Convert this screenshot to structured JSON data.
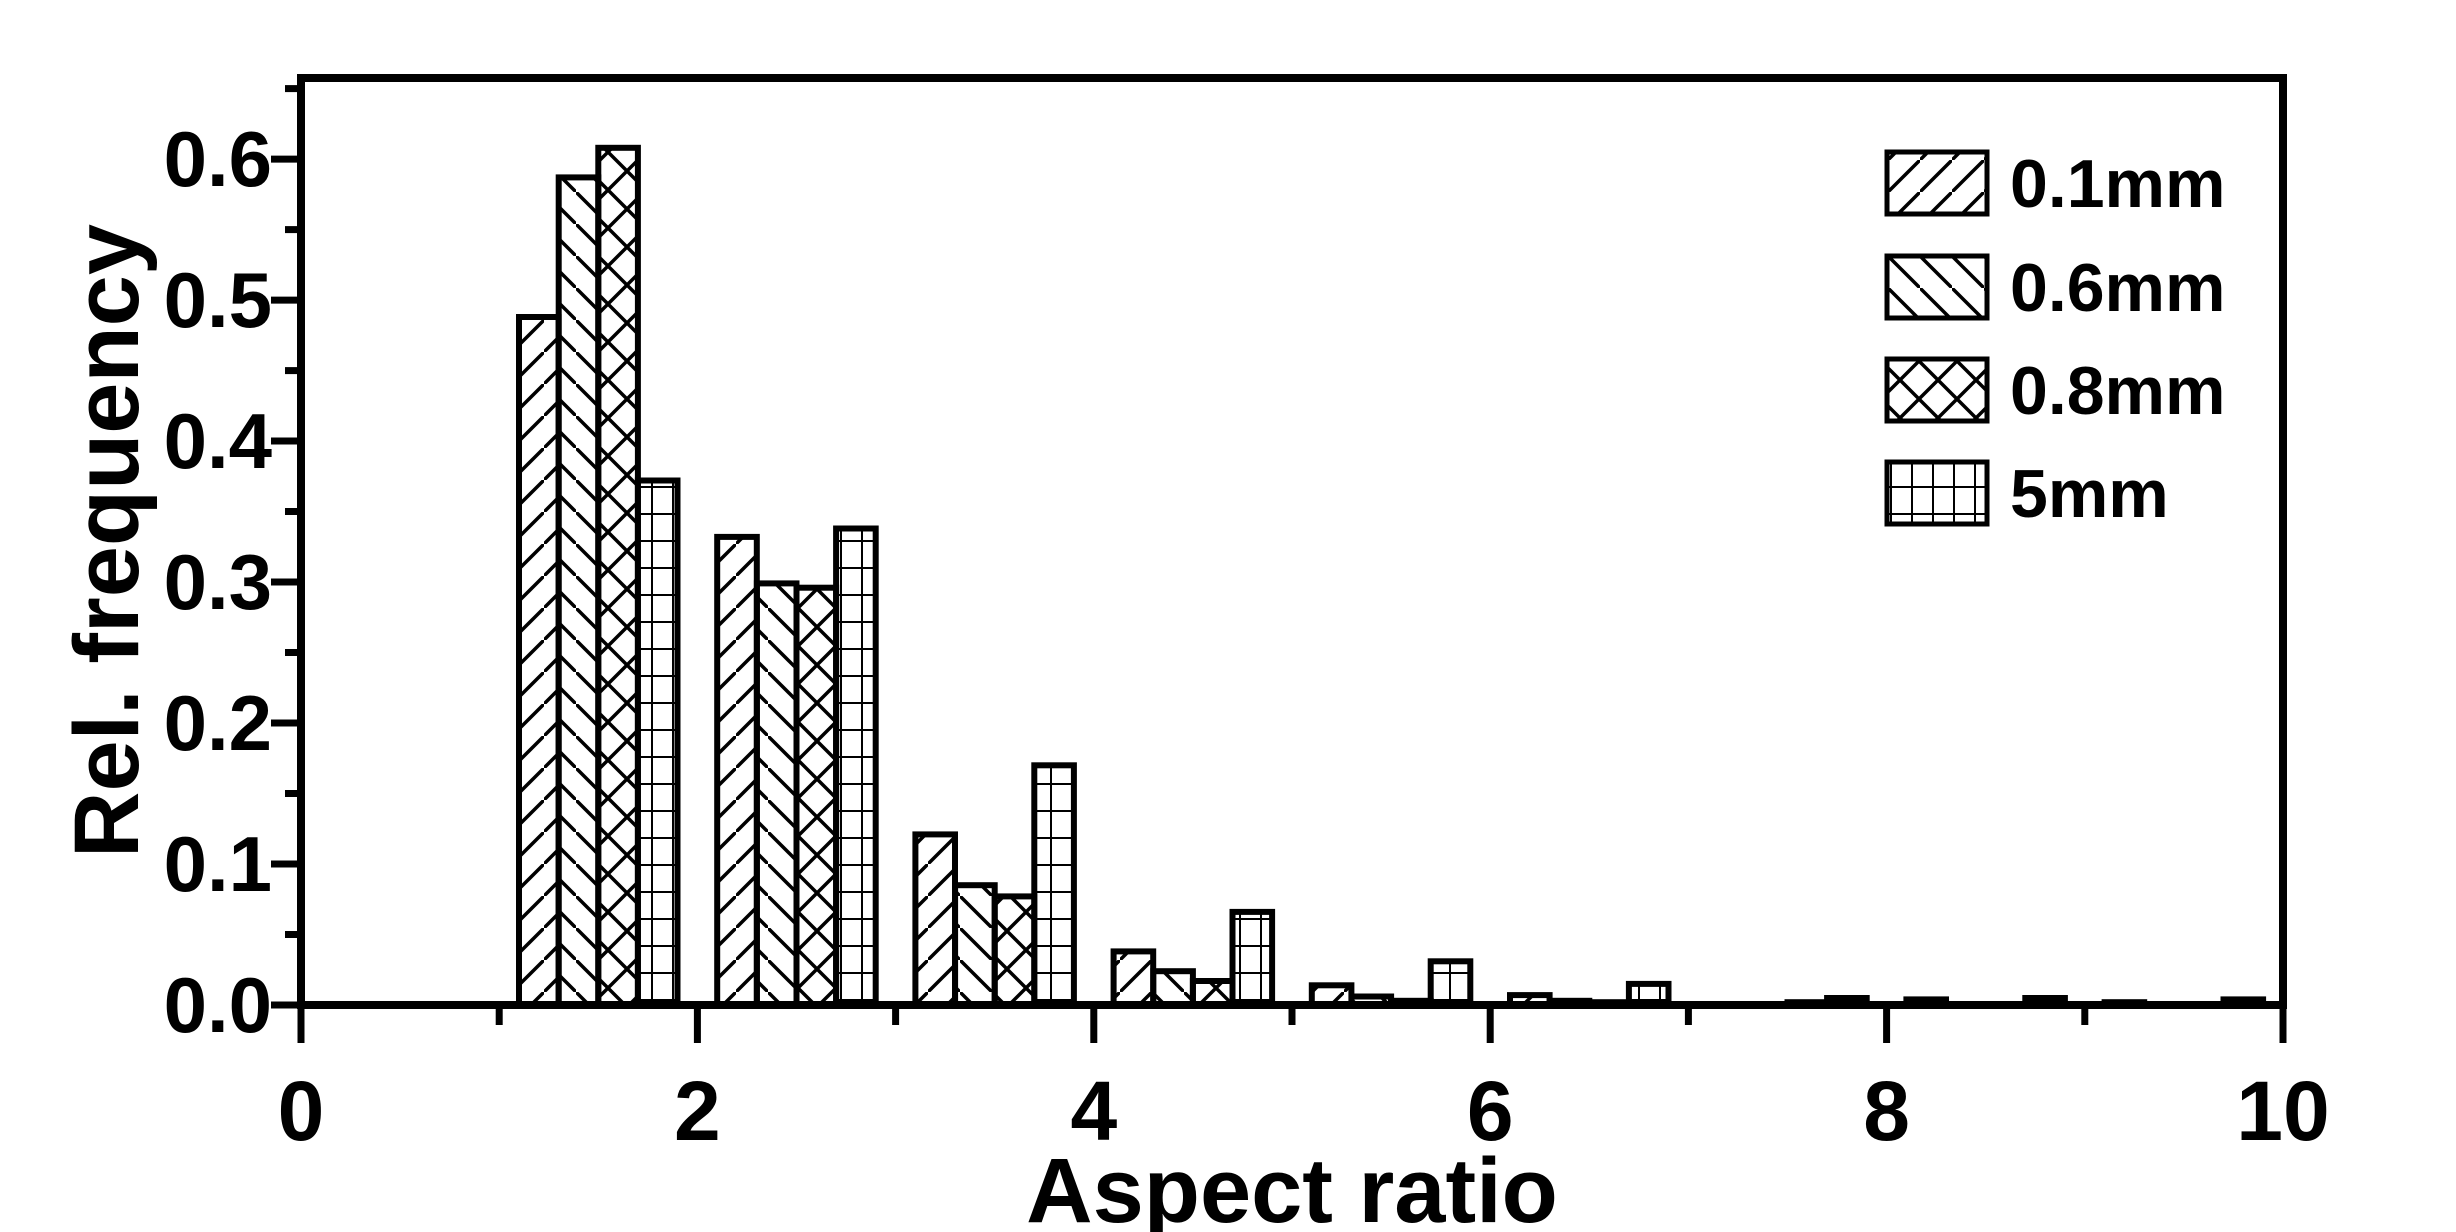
{
  "chart_data": {
    "type": "bar",
    "subtype": "grouped-histogram",
    "title": "",
    "xlabel": "Aspect ratio",
    "ylabel": "Rel. frequency",
    "xlim": [
      0,
      10
    ],
    "ylim": [
      0,
      0.6575
    ],
    "grid": false,
    "background_color": "#ffffff",
    "foreground_color": "#000000",
    "x_major_ticks": [
      0,
      2,
      4,
      6,
      8,
      10
    ],
    "x_major_tick_labels": [
      "0",
      "2",
      "4",
      "6",
      "8",
      "10"
    ],
    "x_minor_ticks": [
      1,
      3,
      5,
      7,
      9
    ],
    "y_major_ticks": [
      0.0,
      0.1,
      0.2,
      0.3,
      0.4,
      0.5,
      0.6
    ],
    "y_major_tick_labels": [
      "0.0",
      "0.1",
      "0.2",
      "0.3",
      "0.4",
      "0.5",
      "0.6"
    ],
    "y_minor_ticks": [
      0.05,
      0.15,
      0.25,
      0.35,
      0.45,
      0.55,
      0.65
    ],
    "bins_start": [
      1,
      2,
      3,
      4,
      5,
      6,
      7,
      8,
      9
    ],
    "slot_offsets": [
      0.1,
      0.3,
      0.5,
      0.7
    ],
    "bar_width_units": 0.2,
    "legend_position": "top-right",
    "series": [
      {
        "name": "0.1mm",
        "hatch": "diagonal-forward",
        "values": [
          0.488,
          0.332,
          0.121,
          0.038,
          0.014,
          0.007,
          0,
          0.004,
          0.002
        ]
      },
      {
        "name": "0.6mm",
        "hatch": "diagonal-backward",
        "values": [
          0.587,
          0.299,
          0.085,
          0.024,
          0.006,
          0.003,
          0,
          0,
          0
        ]
      },
      {
        "name": "0.8mm",
        "hatch": "cross",
        "values": [
          0.608,
          0.296,
          0.077,
          0.017,
          0.003,
          0.002,
          0.002,
          0,
          0
        ]
      },
      {
        "name": "5mm",
        "hatch": "grid",
        "values": [
          0.372,
          0.338,
          0.17,
          0.066,
          0.031,
          0.015,
          0.005,
          0.005,
          0.004
        ]
      }
    ]
  }
}
